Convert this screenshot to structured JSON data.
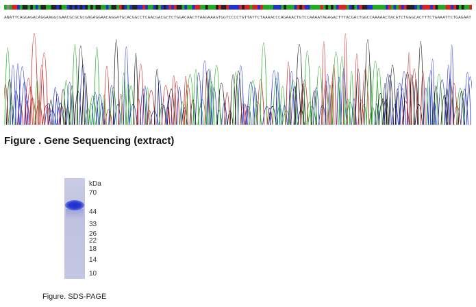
{
  "sequence": {
    "text": "ANATTCAGGAGACAGGAAGGCGAACGCGCGCGAGAGGAACAGGATGCACGGCCTCAACGACGCTCTGGACAACTTAAGAAAGTGGTCCCCTGTTATTCTAAAACCCAGAAACTGTCCAAAATAGAGACTTTACGACTGGCCAAAAACTACATCTGGGCACTTTCTGAAATTCTGAGAAT",
    "base_colors": {
      "A": "#22aa22",
      "C": "#2233cc",
      "G": "#222222",
      "T": "#dd2222",
      "N": "#888888"
    },
    "peak_color_order": [
      "blue",
      "red",
      "green",
      "black"
    ]
  },
  "seq_caption": "Figure . Gene Sequencing (extract)",
  "gel": {
    "unit_label": "kDa",
    "markers": [
      {
        "label": "70",
        "kda": 70
      },
      {
        "label": "44",
        "kda": 44
      },
      {
        "label": "33",
        "kda": 33
      },
      {
        "label": "26",
        "kda": 26
      },
      {
        "label": "22",
        "kda": 22
      },
      {
        "label": "18",
        "kda": 18
      },
      {
        "label": "14",
        "kda": 14
      },
      {
        "label": "10",
        "kda": 10
      }
    ],
    "band_kda": 44,
    "band_color": "#2233cc",
    "lane_color": "#c2c5e0"
  },
  "gel_caption": "Figure. SDS-PAGE"
}
